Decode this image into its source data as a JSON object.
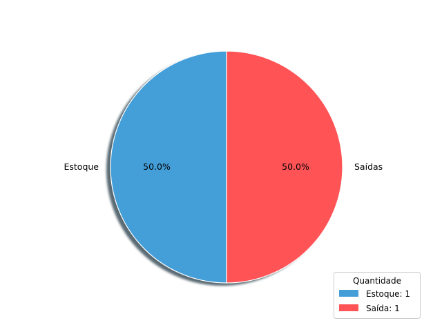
{
  "chart_data": {
    "type": "pie",
    "slices": [
      {
        "label": "Estoque",
        "value": 1,
        "percent_label": "50.0%",
        "color": "#449fd9"
      },
      {
        "label": "Saídas",
        "value": 1,
        "percent_label": "50.0%",
        "color": "#ff5356"
      }
    ],
    "shadow": true,
    "legend": {
      "title": "Quantidade",
      "placement": "lower-right",
      "entries": [
        {
          "label": "Estoque: 1",
          "color": "#449fd9"
        },
        {
          "label": "Saída: 1",
          "color": "#ff5356"
        }
      ]
    }
  }
}
